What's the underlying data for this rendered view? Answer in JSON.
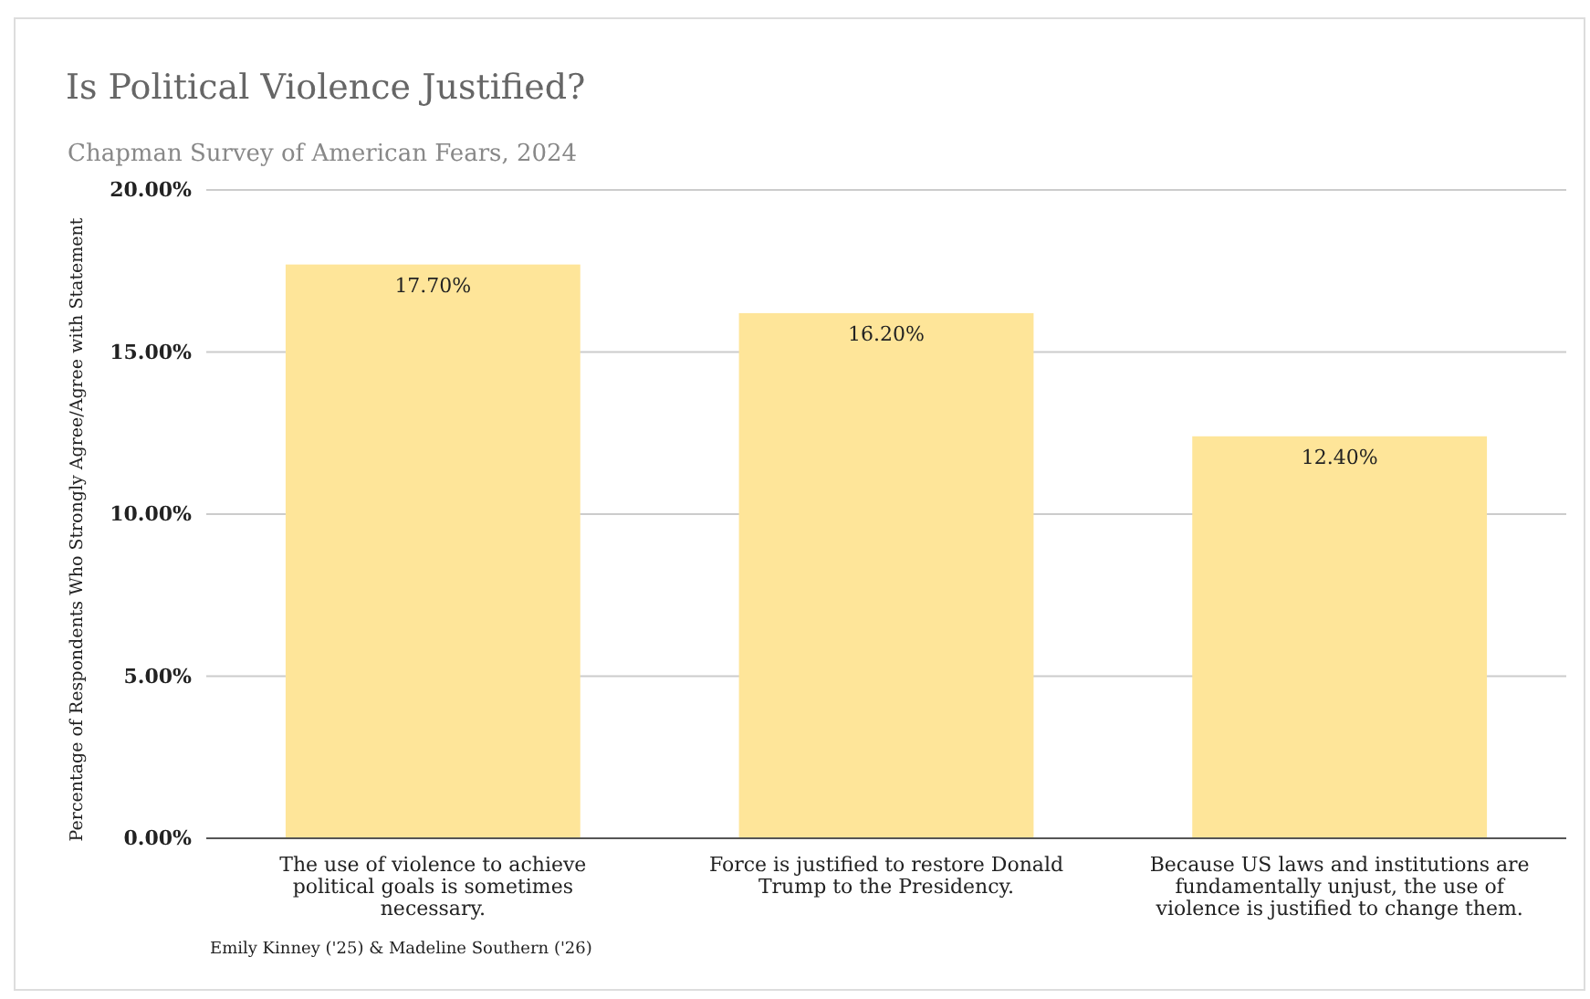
{
  "chart_data": {
    "type": "bar",
    "title": "Is Political Violence Justified?",
    "subtitle": "Chapman Survey of American Fears, 2024",
    "ylabel": "Percentage of Respondents Who Strongly Agree/Agree with Statement",
    "categories": [
      "The use of violence to achieve political goals is sometimes necessary.",
      "Force is justified to restore Donald Trump to the Presidency.",
      "Because US laws and institutions are fundamentally unjust, the use of violence is justified to change them."
    ],
    "values": [
      17.7,
      16.2,
      12.4
    ],
    "color": "#fee599",
    "value_labels": [
      "17.70%",
      "16.20%",
      "12.40%"
    ],
    "ylim": [
      0,
      20
    ],
    "yticks": [
      {
        "value": 0,
        "label": "0.00%"
      },
      {
        "value": 5,
        "label": "5.00%"
      },
      {
        "value": 10,
        "label": "10.00%"
      },
      {
        "value": 15,
        "label": "15.00%"
      },
      {
        "value": 20,
        "label": "20.00%"
      }
    ],
    "grid": "y",
    "annotations": [
      "Emily Kinney ('25) & Madeline Southern ('26)"
    ]
  }
}
